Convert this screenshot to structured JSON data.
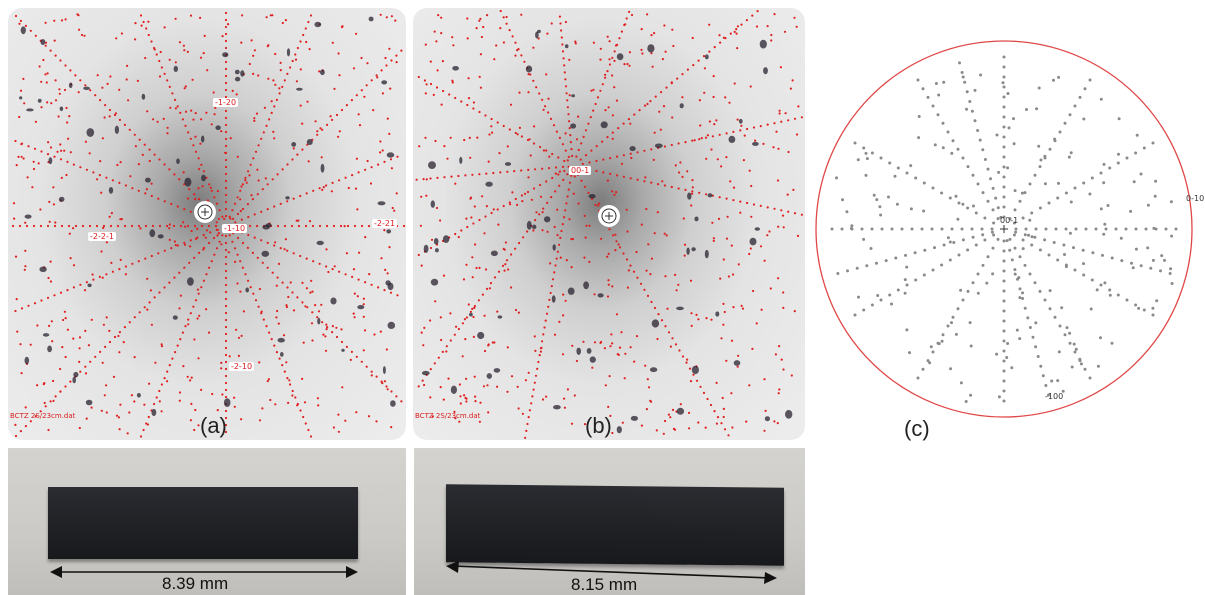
{
  "panel_a": {
    "caption": "(a)",
    "filename": "BCTZ 2S/23cm.dat",
    "labels": [
      "-1-20",
      "-1-10",
      "-2-2-1",
      "-2-21",
      "-2-10"
    ]
  },
  "panel_b": {
    "caption": "(b)",
    "filename": "BCTZ 2S/23cm.dat",
    "labels": [
      "00-1"
    ]
  },
  "panel_c": {
    "caption": "(c)",
    "labels": [
      "00-1",
      "0-10",
      "-100"
    ]
  },
  "photo_a": {
    "dimension": "8.39 mm"
  },
  "photo_b": {
    "dimension": "8.15 mm"
  },
  "colors": {
    "laue_spot": "#e02020",
    "stereo_circle": "#e04848",
    "stereo_point": "#8a8a8a",
    "sample": "#222328"
  }
}
